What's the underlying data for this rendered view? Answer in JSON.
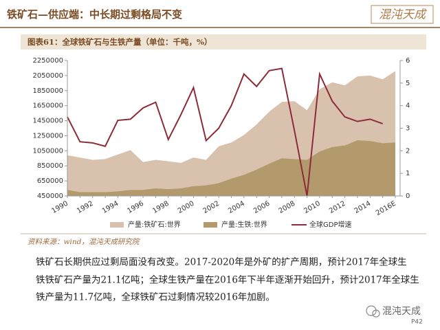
{
  "header": {
    "title": "铁矿石—供应端：中长期过剩格局不变",
    "logo": "混沌天成"
  },
  "chart_data": {
    "type": "area",
    "title": "图表61：全球铁矿石与生铁产量（单位：千吨，%）",
    "categories": [
      "1990",
      null,
      "1992",
      null,
      "1994",
      null,
      "1996",
      null,
      "1998",
      null,
      "2000",
      null,
      "2002",
      null,
      "2004",
      null,
      "2006",
      null,
      "2008",
      null,
      "2010",
      null,
      "2012",
      null,
      "2014",
      null,
      "2016E"
    ],
    "series": [
      {
        "name": "产量:铁矿石:世界",
        "type": "area",
        "color": "#d8c2ae",
        "values": [
          990000,
          960000,
          930000,
          940000,
          1000000,
          1060000,
          900000,
          930000,
          910000,
          890000,
          960000,
          930000,
          1110000,
          1160000,
          1260000,
          1400000,
          1570000,
          1700000,
          1710000,
          1590000,
          1870000,
          1960000,
          1920000,
          2040000,
          2050000,
          2000000,
          2110000
        ]
      },
      {
        "name": "产量:生铁:世界",
        "type": "area",
        "color": "#b39a6c",
        "values": [
          530000,
          500000,
          500000,
          500000,
          510000,
          530000,
          530000,
          550000,
          540000,
          550000,
          580000,
          590000,
          620000,
          680000,
          730000,
          800000,
          880000,
          950000,
          940000,
          930000,
          1040000,
          1100000,
          1120000,
          1190000,
          1180000,
          1150000,
          1160000
        ]
      },
      {
        "name": "全球GDP增速",
        "type": "line",
        "axis": "y2",
        "color": "#8c2b37",
        "values": [
          3.5,
          2.4,
          2.35,
          2.2,
          3.35,
          3.4,
          3.9,
          4.15,
          2.5,
          3.6,
          4.8,
          2.45,
          3.0,
          4.0,
          5.4,
          4.85,
          5.55,
          5.65,
          2.9,
          0,
          5.4,
          4.2,
          3.5,
          3.3,
          3.4,
          3.2,
          null
        ]
      }
    ],
    "ylim": [
      450000,
      2250000
    ],
    "yticks": [
      450000,
      650000,
      850000,
      1050000,
      1250000,
      1450000,
      1650000,
      1850000,
      2050000,
      2250000
    ],
    "y2lim": [
      0,
      6
    ],
    "y2ticks": [
      0,
      1,
      2,
      3,
      4,
      5,
      6
    ],
    "legend": "bottom"
  },
  "source": "资料来源：wind，混沌天成研究院",
  "body": [
    "铁矿石长期供应过剩局面没有改变。2017-2020年是外矿的扩产周期，预计2017年全球生",
    "铁铁矿石产量为21.1亿吨；全球生铁产量在2016年下半年逐渐开始回升，预计2017年全球生",
    "铁产量为11.7亿吨，全球铁矿石过剩情况较2016年加剧。"
  ],
  "watermark": "混沌天成",
  "page_number": "P42"
}
